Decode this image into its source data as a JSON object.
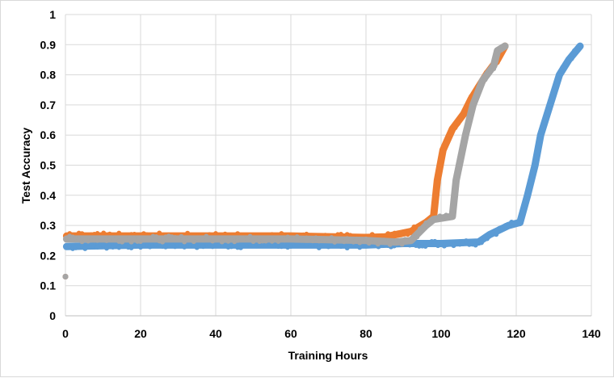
{
  "chart_data": {
    "type": "scatter",
    "title": "",
    "xlabel": "Training Hours",
    "ylabel": "Test Accuracy",
    "xlim": [
      0,
      140
    ],
    "ylim": [
      0,
      1
    ],
    "xticks": [
      0,
      20,
      40,
      60,
      80,
      100,
      120,
      140
    ],
    "yticks": [
      0,
      0.1,
      0.2,
      0.3,
      0.4,
      0.5,
      0.6,
      0.7,
      0.8,
      0.9,
      1
    ],
    "ytick_labels": [
      "0",
      "0.1",
      "0.2",
      "0.3",
      "0.4",
      "0.5",
      "0.6",
      "0.7",
      "0.8",
      "0.9",
      "1"
    ],
    "grid": true,
    "legend": "none",
    "series": [
      {
        "name": "blue",
        "color": "#5b9bd5",
        "x": [
          0,
          0.3,
          20,
          40,
          60,
          80,
          90,
          100,
          110,
          113,
          118,
          121,
          123,
          125,
          126.5,
          129,
          131.5,
          134,
          137
        ],
        "y": [
          0.13,
          0.23,
          0.235,
          0.235,
          0.235,
          0.235,
          0.24,
          0.24,
          0.245,
          0.27,
          0.3,
          0.31,
          0.4,
          0.5,
          0.6,
          0.7,
          0.8,
          0.85,
          0.895
        ]
      },
      {
        "name": "orange",
        "color": "#ed7d31",
        "x": [
          0,
          0.3,
          20,
          40,
          60,
          80,
          85,
          92,
          96,
          98,
          99,
          100.5,
          103,
          106,
          108,
          112,
          115,
          117
        ],
        "y": [
          0.13,
          0.265,
          0.265,
          0.265,
          0.265,
          0.26,
          0.262,
          0.28,
          0.31,
          0.33,
          0.45,
          0.55,
          0.62,
          0.67,
          0.72,
          0.8,
          0.85,
          0.895
        ]
      },
      {
        "name": "gray",
        "color": "#a5a5a5",
        "x": [
          0,
          0.3,
          20,
          40,
          60,
          80,
          88,
          92,
          96,
          98,
          103,
          104,
          106.5,
          108.5,
          111,
          114,
          115,
          117
        ],
        "y": [
          0.13,
          0.255,
          0.255,
          0.255,
          0.255,
          0.25,
          0.245,
          0.25,
          0.3,
          0.32,
          0.33,
          0.45,
          0.6,
          0.7,
          0.78,
          0.83,
          0.88,
          0.895
        ]
      }
    ]
  }
}
